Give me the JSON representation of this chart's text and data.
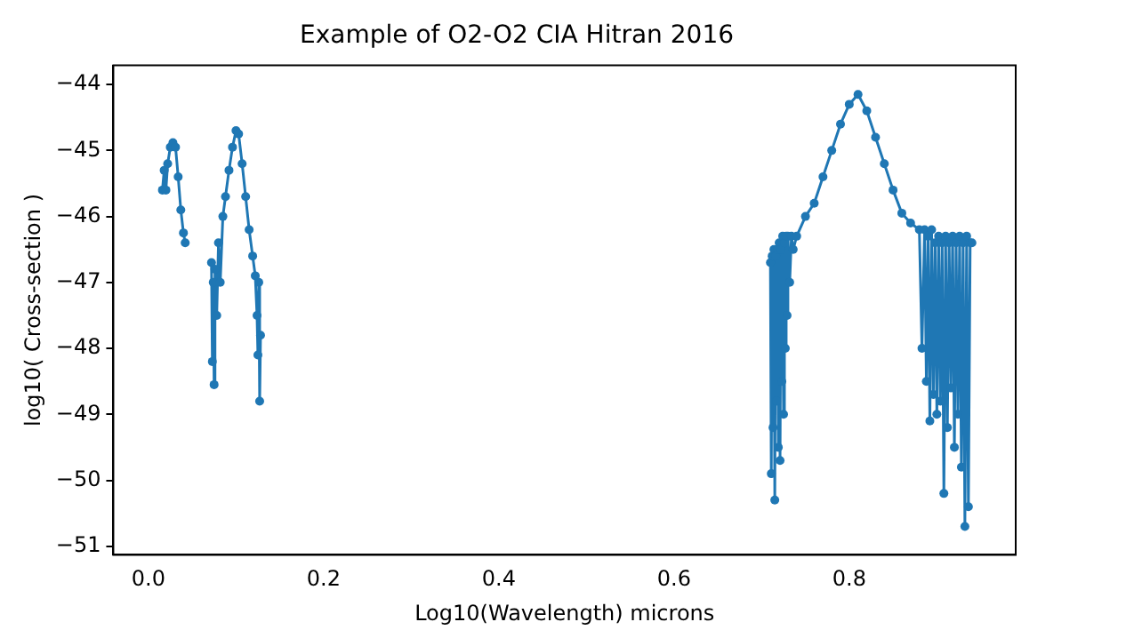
{
  "chart_data": {
    "type": "line",
    "title": "Example of O2-O2 CIA Hitran 2016",
    "xlabel": "Log10(Wavelength) microns",
    "ylabel": "log10( Cross-section )",
    "xlim": [
      -0.04,
      0.99
    ],
    "ylim": [
      -51.13,
      -43.71
    ],
    "xticks": [
      {
        "value": 0,
        "label": "0.0"
      },
      {
        "value": 0.2,
        "label": "0.2"
      },
      {
        "value": 0.4,
        "label": "0.4"
      },
      {
        "value": 0.6,
        "label": "0.6"
      },
      {
        "value": 0.8,
        "label": "0.8"
      }
    ],
    "yticks": [
      -51,
      -50,
      -49,
      -48,
      -47,
      -46,
      -45,
      -44
    ],
    "grid": false,
    "legend": false,
    "marker": "circle",
    "line_style": "solid",
    "series": [
      {
        "color": "#1f77b4",
        "x": [
          0.016,
          0.018,
          0.02,
          0.022,
          0.025,
          0.028,
          0.031,
          0.034,
          0.037,
          0.04,
          0.042,
          0.05,
          0.072,
          0.073,
          0.074,
          0.075,
          0.076,
          0.078,
          0.08,
          0.082,
          0.085,
          0.088,
          0.092,
          0.096,
          0.1,
          0.103,
          0.107,
          0.111,
          0.115,
          0.119,
          0.122,
          0.124,
          0.125,
          0.126,
          0.127,
          0.128,
          0.4,
          0.71,
          0.711,
          0.712,
          0.713,
          0.714,
          0.715,
          0.716,
          0.717,
          0.718,
          0.719,
          0.72,
          0.721,
          0.722,
          0.723,
          0.724,
          0.725,
          0.726,
          0.727,
          0.728,
          0.729,
          0.73,
          0.732,
          0.734,
          0.736,
          0.74,
          0.75,
          0.76,
          0.77,
          0.78,
          0.79,
          0.8,
          0.81,
          0.82,
          0.83,
          0.84,
          0.85,
          0.86,
          0.87,
          0.88,
          0.883,
          0.886,
          0.888,
          0.89,
          0.892,
          0.894,
          0.896,
          0.898,
          0.9,
          0.902,
          0.904,
          0.906,
          0.908,
          0.91,
          0.912,
          0.914,
          0.916,
          0.918,
          0.92,
          0.922,
          0.924,
          0.926,
          0.928,
          0.93,
          0.932,
          0.934,
          0.936,
          0.938,
          0.94
        ],
        "values": [
          -45.6,
          -45.3,
          -45.6,
          -45.2,
          -44.95,
          -44.88,
          -44.95,
          -45.4,
          -45.9,
          -46.25,
          -46.4,
          null,
          -46.7,
          -48.2,
          -47.0,
          -48.55,
          -46.8,
          -47.5,
          -46.4,
          -47.0,
          -46.0,
          -45.7,
          -45.3,
          -44.95,
          -44.7,
          -44.75,
          -45.2,
          -45.7,
          -46.2,
          -46.6,
          -46.9,
          -47.5,
          -48.1,
          -47.0,
          -48.8,
          -47.8,
          null,
          -46.7,
          -49.9,
          -46.6,
          -49.2,
          -46.5,
          -50.3,
          -46.6,
          -48.8,
          -46.5,
          -49.5,
          -46.4,
          -49.7,
          -46.5,
          -48.5,
          -46.3,
          -49.0,
          -46.4,
          -48.0,
          -46.3,
          -47.5,
          -46.3,
          -47.0,
          -46.3,
          -46.5,
          -46.3,
          -46.0,
          -45.8,
          -45.4,
          -45.0,
          -44.6,
          -44.3,
          -44.15,
          -44.4,
          -44.8,
          -45.2,
          -45.6,
          -45.95,
          -46.1,
          -46.2,
          -48.0,
          -46.2,
          -48.5,
          -46.3,
          -49.1,
          -46.2,
          -48.7,
          -46.4,
          -49.0,
          -46.3,
          -48.8,
          -46.4,
          -50.2,
          -46.3,
          -49.2,
          -46.4,
          -48.6,
          -46.3,
          -49.5,
          -46.4,
          -49.0,
          -46.3,
          -49.8,
          -46.4,
          -50.7,
          -46.3,
          -50.4,
          -46.4,
          -46.4
        ]
      }
    ]
  }
}
